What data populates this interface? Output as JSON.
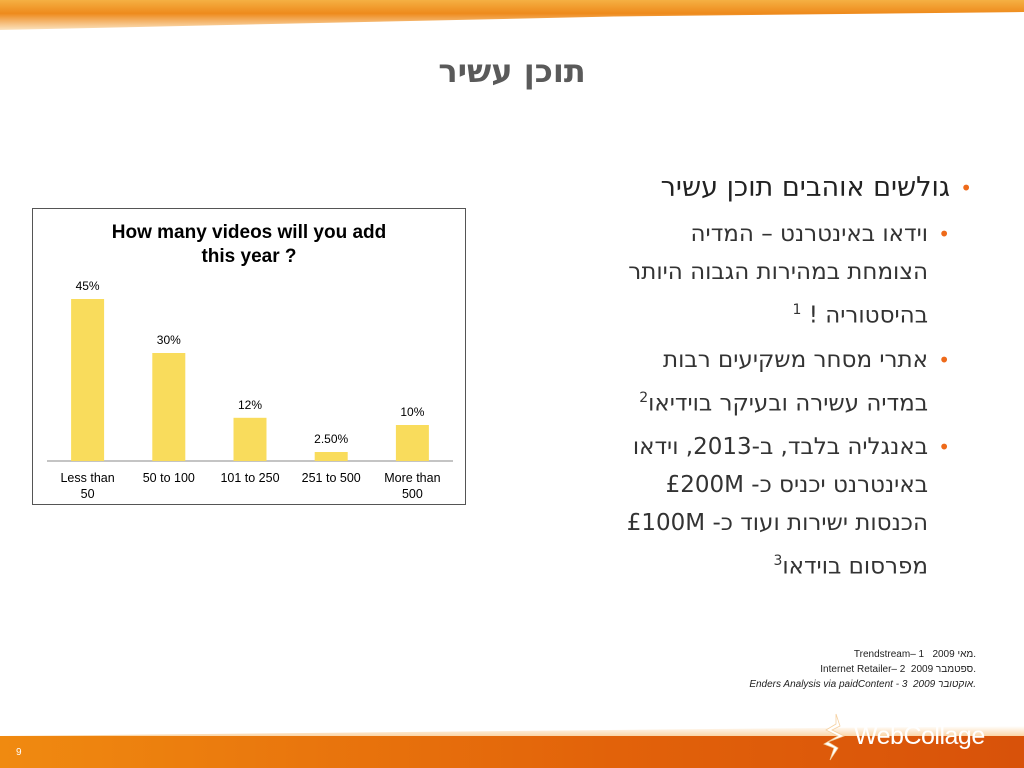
{
  "slide": {
    "title": "תוכן עשיר",
    "page_number": "9"
  },
  "bullets": {
    "main": "גולשים אוהבים תוכן עשיר",
    "sub1_lines": [
      "וידאו באינטרנט – המדיה",
      "הצומחת במהירות הגבוה היותר",
      "בהיסטוריה !"
    ],
    "sub1_ref": "1",
    "sub2_lines": [
      "אתרי מסחר משקיעים רבות",
      "במדיה עשירה ובעיקר בוידיאו"
    ],
    "sub2_ref": "2",
    "sub3_lines": [
      "באנגליה בלבד, ב-2013, וידאו",
      "באינטרנט יכניס כ- £200M",
      "הכנסות ישירות ועוד כ- £100M",
      "מפרסום בוידאו"
    ],
    "sub3_ref": "3"
  },
  "footnotes": [
    {
      "num": "1.",
      "text": "Trendstream– מאי 2009"
    },
    {
      "num": "2.",
      "text": "Internet Retailer– ספטמבר 2009"
    },
    {
      "num": "3.",
      "text": "Enders Analysis via paidContent  - אוקטובר 2009"
    }
  ],
  "logo": {
    "text": "WebCollage"
  },
  "colors": {
    "bar": "#f9dc5c",
    "accent": "#ee6a1a",
    "bottom_bar": "#e2620a"
  },
  "chart_data": {
    "type": "bar",
    "title_lines": [
      "How many videos will you add",
      "this year  ?"
    ],
    "categories": [
      [
        "Less than",
        "50"
      ],
      [
        "50 to 100"
      ],
      [
        "101 to 250"
      ],
      [
        "251 to 500"
      ],
      [
        "More than",
        "500"
      ]
    ],
    "values": [
      45,
      30,
      12,
      2.5,
      10
    ],
    "data_labels": [
      "45%",
      "30%",
      "12%",
      "2.50%",
      "10%"
    ],
    "ylim": [
      0,
      50
    ],
    "grid": false,
    "legend": "none"
  }
}
